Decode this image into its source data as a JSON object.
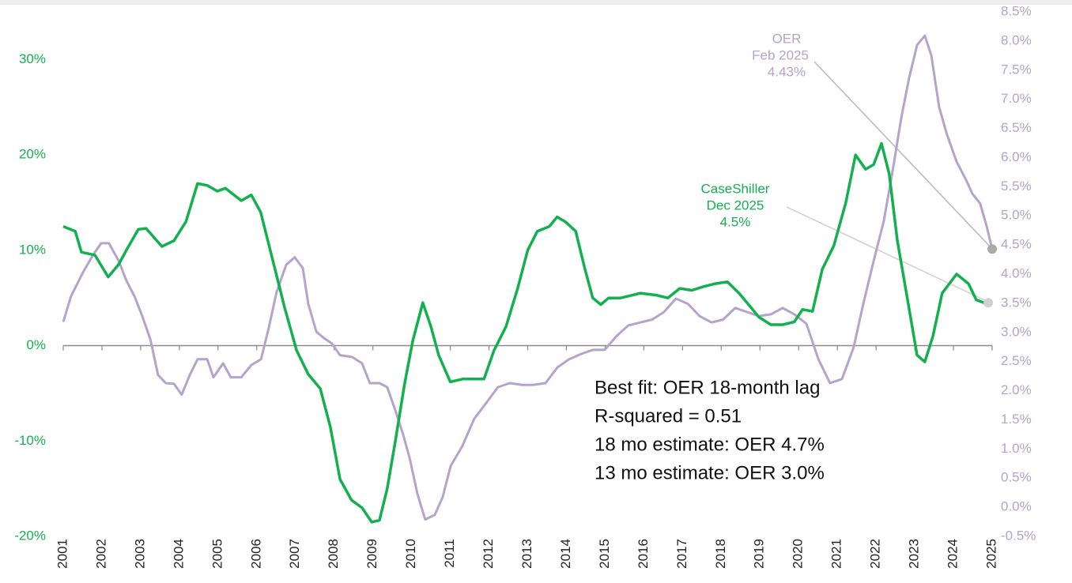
{
  "chart_data": {
    "type": "line",
    "xlim": [
      2001,
      2025.1
    ],
    "xticks": [
      2001,
      2002,
      2003,
      2004,
      2005,
      2006,
      2007,
      2008,
      2009,
      2010,
      2011,
      2012,
      2013,
      2014,
      2015,
      2016,
      2017,
      2018,
      2019,
      2020,
      2021,
      2022,
      2023,
      2024,
      2025
    ],
    "ylim": [
      -20,
      35
    ],
    "yticks": [
      {
        "value": -20,
        "label": "-20%"
      },
      {
        "value": -10,
        "label": "-10%"
      },
      {
        "value": 0,
        "label": "0%"
      },
      {
        "value": 10,
        "label": "10%"
      },
      {
        "value": 20,
        "label": "20%"
      },
      {
        "value": 30,
        "label": "30%"
      }
    ],
    "y2lim": [
      -0.5,
      8.5
    ],
    "y2ticks": [
      {
        "value": -0.5,
        "label": "-0.5%"
      },
      {
        "value": 0,
        "label": "0.0%"
      },
      {
        "value": 0.5,
        "label": "0.5%"
      },
      {
        "value": 1,
        "label": "1.0%"
      },
      {
        "value": 1.5,
        "label": "1.5%"
      },
      {
        "value": 2,
        "label": "2.0%"
      },
      {
        "value": 2.5,
        "label": "2.5%"
      },
      {
        "value": 3,
        "label": "3.0%"
      },
      {
        "value": 3.5,
        "label": "3.5%"
      },
      {
        "value": 4,
        "label": "4.0%"
      },
      {
        "value": 4.5,
        "label": "4.5%"
      },
      {
        "value": 5,
        "label": "5.0%"
      },
      {
        "value": 5.5,
        "label": "5.5%"
      },
      {
        "value": 6,
        "label": "6.0%"
      },
      {
        "value": 6.5,
        "label": "6.5%"
      },
      {
        "value": 7,
        "label": "7.0%"
      },
      {
        "value": 7.5,
        "label": "7.5%"
      },
      {
        "value": 8,
        "label": "8.0%"
      },
      {
        "value": 8.5,
        "label": "8.5%"
      }
    ],
    "series": [
      {
        "name": "CaseShiller",
        "color": "#13b04f",
        "axis": "y",
        "x": [
          2001.0,
          2001.31,
          2001.47,
          2001.82,
          2002.16,
          2002.43,
          2002.63,
          2002.94,
          2003.14,
          2003.55,
          2003.86,
          2004.17,
          2004.47,
          2004.72,
          2004.98,
          2005.19,
          2005.6,
          2005.86,
          2006.1,
          2006.41,
          2006.72,
          2007.03,
          2007.33,
          2007.64,
          2007.9,
          2008.15,
          2008.45,
          2008.72,
          2008.97,
          2009.17,
          2009.37,
          2009.58,
          2009.82,
          2010.03,
          2010.29,
          2010.5,
          2010.7,
          2011.0,
          2011.32,
          2011.62,
          2011.87,
          2012.13,
          2012.44,
          2012.74,
          2013.0,
          2013.25,
          2013.56,
          2013.76,
          2013.97,
          2014.24,
          2014.48,
          2014.68,
          2014.89,
          2015.09,
          2015.4,
          2015.71,
          2015.91,
          2016.32,
          2016.62,
          2016.93,
          2017.24,
          2017.55,
          2017.85,
          2018.16,
          2018.46,
          2018.77,
          2018.97,
          2019.28,
          2019.59,
          2019.89,
          2020.1,
          2020.36,
          2020.61,
          2020.91,
          2021.22,
          2021.47,
          2021.73,
          2021.94,
          2022.14,
          2022.34,
          2022.55,
          2022.85,
          2023.06,
          2023.26,
          2023.47,
          2023.71,
          2024.08,
          2024.39,
          2024.59,
          2024.79,
          2024.9
        ],
        "values": [
          12.5,
          12,
          9.8,
          9.5,
          7.2,
          8.5,
          10,
          12.2,
          12.3,
          10.4,
          11,
          13,
          17,
          16.8,
          16.2,
          16.5,
          15.2,
          15.8,
          14,
          9,
          4,
          -0.5,
          -3,
          -4.5,
          -8.5,
          -14,
          -16.2,
          -17,
          -18.5,
          -18.3,
          -15,
          -10,
          -4,
          0.5,
          4.5,
          2,
          -1,
          -3.8,
          -3.5,
          -3.5,
          -3.5,
          -0.5,
          2,
          6,
          10,
          12,
          12.5,
          13.5,
          13,
          12,
          8,
          5,
          4.3,
          5,
          5,
          5.3,
          5.5,
          5.3,
          5,
          6,
          5.8,
          6.2,
          6.5,
          6.7,
          5.5,
          4,
          3,
          2.2,
          2.2,
          2.5,
          3.8,
          3.6,
          8,
          10.5,
          15,
          20,
          18.5,
          19,
          21.2,
          18,
          11,
          4,
          -1,
          -1.7,
          1,
          5.5,
          7.5,
          6.5,
          4.8,
          4.5,
          4.5
        ]
      },
      {
        "name": "OER",
        "color": "#b4a3cd",
        "axis": "y2",
        "x": [
          2001.0,
          2001.2,
          2001.51,
          2001.78,
          2001.98,
          2002.18,
          2002.43,
          2002.63,
          2002.84,
          2003.04,
          2003.25,
          2003.45,
          2003.65,
          2003.86,
          2004.06,
          2004.27,
          2004.47,
          2004.72,
          2004.88,
          2005.13,
          2005.33,
          2005.6,
          2005.86,
          2006.11,
          2006.31,
          2006.51,
          2006.76,
          2006.98,
          2007.19,
          2007.33,
          2007.54,
          2007.74,
          2007.94,
          2008.15,
          2008.46,
          2008.72,
          2008.92,
          2009.17,
          2009.37,
          2009.58,
          2009.78,
          2009.95,
          2010.15,
          2010.35,
          2010.6,
          2010.8,
          2011.01,
          2011.31,
          2011.62,
          2011.93,
          2012.23,
          2012.54,
          2012.85,
          2013.15,
          2013.46,
          2013.77,
          2014.07,
          2014.38,
          2014.68,
          2014.99,
          2015.3,
          2015.6,
          2015.91,
          2016.22,
          2016.52,
          2016.83,
          2017.14,
          2017.44,
          2017.75,
          2018.05,
          2018.36,
          2018.67,
          2018.97,
          2019.28,
          2019.59,
          2019.89,
          2020.2,
          2020.51,
          2020.81,
          2021.12,
          2021.42,
          2021.67,
          2021.94,
          2022.2,
          2022.45,
          2022.65,
          2022.85,
          2023.06,
          2023.26,
          2023.43,
          2023.63,
          2023.83,
          2024.08,
          2024.33,
          2024.49,
          2024.69,
          2024.85,
          2025.0
        ],
        "values": [
          3.18,
          3.62,
          4.03,
          4.34,
          4.53,
          4.53,
          4.23,
          3.89,
          3.62,
          3.28,
          2.88,
          2.27,
          2.13,
          2.12,
          1.93,
          2.27,
          2.54,
          2.54,
          2.23,
          2.47,
          2.23,
          2.23,
          2.44,
          2.54,
          3.08,
          3.69,
          4.16,
          4.29,
          4.1,
          3.49,
          3.01,
          2.9,
          2.81,
          2.61,
          2.58,
          2.47,
          2.13,
          2.13,
          2.06,
          1.66,
          1.25,
          0.84,
          0.23,
          -0.21,
          -0.13,
          0.17,
          0.71,
          1.05,
          1.52,
          1.79,
          2.06,
          2.13,
          2.1,
          2.1,
          2.13,
          2.4,
          2.54,
          2.63,
          2.7,
          2.7,
          2.94,
          3.12,
          3.17,
          3.22,
          3.35,
          3.58,
          3.49,
          3.28,
          3.17,
          3.22,
          3.42,
          3.35,
          3.28,
          3.31,
          3.42,
          3.31,
          3.15,
          2.54,
          2.13,
          2.2,
          2.74,
          3.49,
          4.23,
          4.91,
          5.86,
          6.67,
          7.35,
          7.93,
          8.09,
          7.75,
          6.87,
          6.4,
          5.93,
          5.61,
          5.38,
          5.21,
          4.84,
          4.43
        ]
      }
    ],
    "annotations": [
      {
        "series": 1,
        "lines": [
          "OER",
          "Feb 2025",
          "4.43%"
        ]
      },
      {
        "series": 0,
        "lines": [
          "CaseShiller",
          "Dec 2025",
          "4.5%"
        ]
      }
    ],
    "notes": [
      "Best fit: OER 18-month lag",
      "R-squared = 0.51",
      "18 mo estimate: OER 4.7%",
      "13 mo estimate: OER 3.0%"
    ]
  }
}
